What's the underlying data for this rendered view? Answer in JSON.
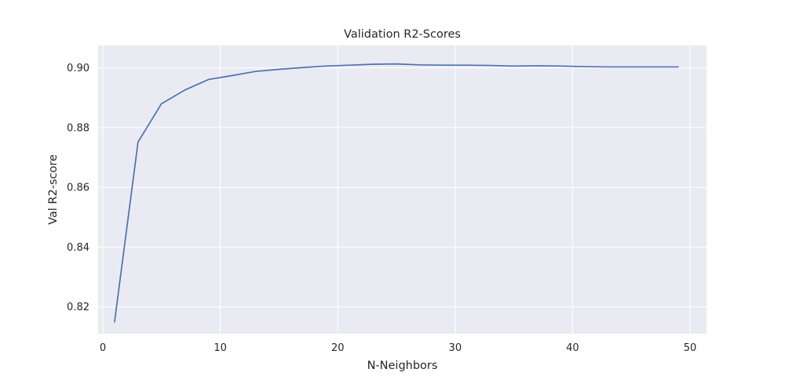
{
  "chart_data": {
    "type": "line",
    "title": "Validation R2-Scores",
    "xlabel": "N-Neighbors",
    "ylabel": "Val R2-score",
    "xlim": [
      -0.4,
      51.4
    ],
    "ylim": [
      0.811,
      0.9075
    ],
    "x_ticks": [
      0,
      10,
      20,
      30,
      40,
      50
    ],
    "y_ticks": [
      0.82,
      0.84,
      0.86,
      0.88,
      0.9
    ],
    "x_tick_labels": [
      "0",
      "10",
      "20",
      "30",
      "40",
      "50"
    ],
    "y_tick_labels": [
      "0.82",
      "0.84",
      "0.86",
      "0.88",
      "0.90"
    ],
    "grid": true,
    "colors": {
      "plot_bg": "#eaeaf2",
      "grid": "#ffffff",
      "line": "#4c72b0",
      "text": "#262626"
    },
    "series": [
      {
        "x": [
          1,
          3,
          5,
          7,
          9,
          11,
          13,
          15,
          17,
          19,
          21,
          23,
          25,
          27,
          29,
          31,
          33,
          35,
          37,
          39,
          41,
          43,
          45,
          47,
          49
        ],
        "values": [
          0.815,
          0.8752,
          0.888,
          0.8926,
          0.8961,
          0.8974,
          0.8988,
          0.8995,
          0.9001,
          0.9006,
          0.9009,
          0.9012,
          0.9013,
          0.901,
          0.9009,
          0.9009,
          0.9008,
          0.9006,
          0.9007,
          0.9006,
          0.9004,
          0.9003,
          0.9003,
          0.9003,
          0.9003
        ]
      }
    ]
  }
}
